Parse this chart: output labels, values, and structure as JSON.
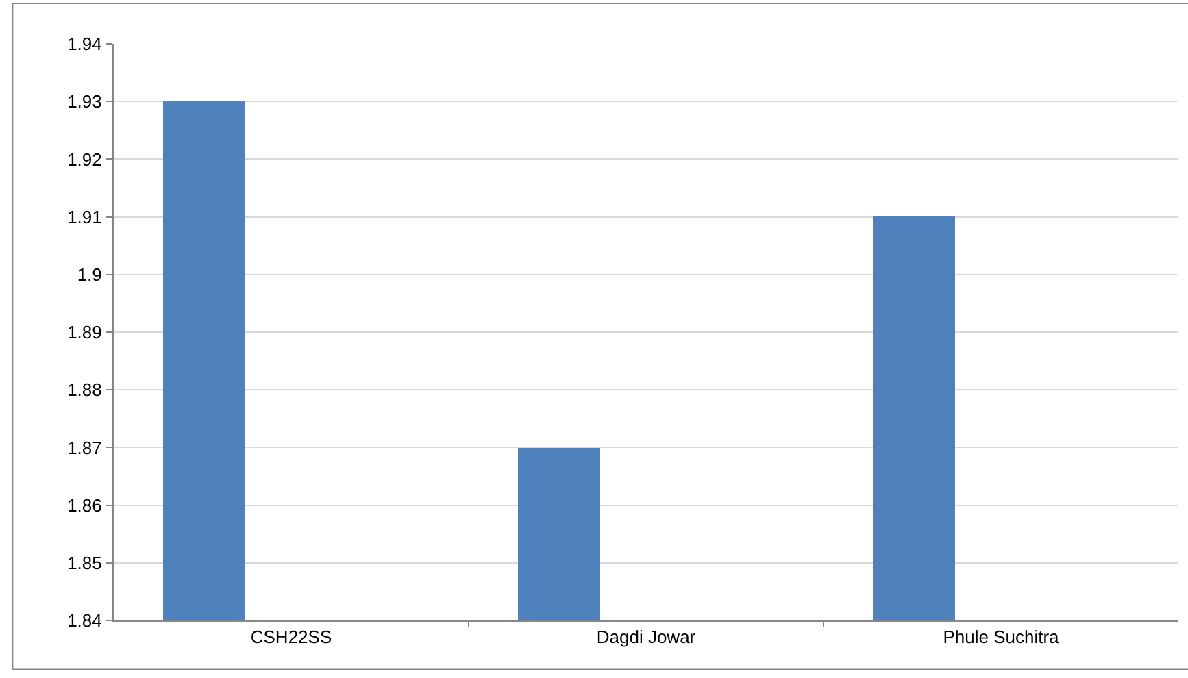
{
  "chart_data": {
    "type": "bar",
    "categories": [
      "CSH22SS",
      "Dagdi Jowar",
      "Phule Suchitra"
    ],
    "values": [
      1.93,
      1.87,
      1.91
    ],
    "color": "#4f81bd",
    "ylim": [
      1.84,
      1.94
    ],
    "yticks": [
      1.84,
      1.85,
      1.86,
      1.87,
      1.88,
      1.89,
      1.9,
      1.91,
      1.92,
      1.93,
      1.94
    ],
    "grid": "y"
  }
}
